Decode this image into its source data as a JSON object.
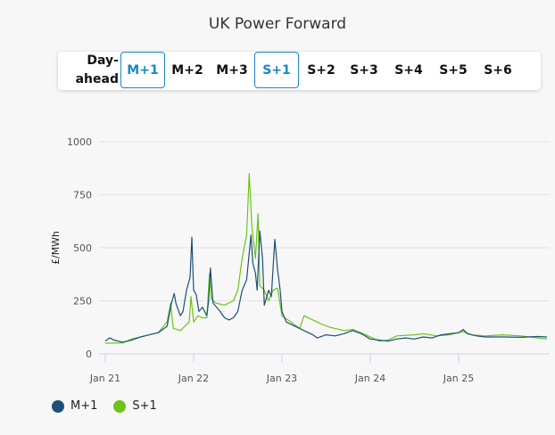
{
  "title": "UK Power Forward",
  "buttons": [
    {
      "label": "Day-",
      "label2": "ahead",
      "active": false
    },
    {
      "label": "M+1",
      "active": true
    },
    {
      "label": "M+2",
      "active": false
    },
    {
      "label": "M+3",
      "active": false
    },
    {
      "label": "S+1",
      "active": true
    },
    {
      "label": "S+2",
      "active": false
    },
    {
      "label": "S+3",
      "active": false
    },
    {
      "label": "S+4",
      "active": false
    },
    {
      "label": "S+5",
      "active": false
    },
    {
      "label": "S+6",
      "active": false
    }
  ],
  "chart_data": {
    "type": "line",
    "title": "UK Power Forward",
    "xlabel": "",
    "ylabel": "£/MWh",
    "ylim": [
      0,
      1000
    ],
    "xlim": [
      2020.93,
      2026.03
    ],
    "yticks": [
      0,
      250,
      500,
      750,
      1000
    ],
    "xticks": [
      {
        "x": 2021,
        "label": "Jan 21"
      },
      {
        "x": 2022,
        "label": "Jan 22"
      },
      {
        "x": 2023,
        "label": "Jan 23"
      },
      {
        "x": 2024,
        "label": "Jan 24"
      },
      {
        "x": 2025,
        "label": "Jan 25"
      }
    ],
    "grid": true,
    "legend_position": "bottom-left",
    "series": [
      {
        "name": "M+1",
        "color": "#1d4f7a",
        "x": [
          2021.0,
          2021.05,
          2021.1,
          2021.2,
          2021.3,
          2021.4,
          2021.5,
          2021.6,
          2021.7,
          2021.75,
          2021.78,
          2021.8,
          2021.85,
          2021.88,
          2021.92,
          2021.96,
          2021.98,
          2022.0,
          2022.03,
          2022.06,
          2022.1,
          2022.15,
          2022.17,
          2022.19,
          2022.22,
          2022.3,
          2022.35,
          2022.4,
          2022.45,
          2022.5,
          2022.55,
          2022.6,
          2022.65,
          2022.67,
          2022.7,
          2022.72,
          2022.75,
          2022.78,
          2022.8,
          2022.85,
          2022.88,
          2022.92,
          2022.95,
          2022.98,
          2023.0,
          2023.05,
          2023.15,
          2023.25,
          2023.35,
          2023.4,
          2023.5,
          2023.6,
          2023.7,
          2023.8,
          2023.9,
          2024.0,
          2024.1,
          2024.2,
          2024.3,
          2024.4,
          2024.5,
          2024.6,
          2024.7,
          2024.8,
          2024.9,
          2025.0,
          2025.05,
          2025.1,
          2025.2,
          2025.3,
          2025.5,
          2025.7,
          2025.9,
          2026.0
        ],
        "y": [
          60,
          75,
          65,
          55,
          65,
          80,
          90,
          100,
          130,
          240,
          285,
          240,
          180,
          200,
          300,
          360,
          550,
          300,
          280,
          200,
          220,
          180,
          250,
          405,
          240,
          200,
          170,
          160,
          170,
          200,
          300,
          350,
          560,
          430,
          380,
          300,
          580,
          450,
          230,
          300,
          270,
          540,
          400,
          300,
          200,
          150,
          130,
          110,
          90,
          75,
          90,
          85,
          95,
          110,
          95,
          70,
          65,
          60,
          70,
          75,
          70,
          80,
          75,
          90,
          95,
          100,
          115,
          95,
          85,
          80,
          80,
          78,
          82,
          80
        ]
      },
      {
        "name": "S+1",
        "color": "#6cc417",
        "x": [
          2021.0,
          2021.2,
          2021.3,
          2021.5,
          2021.6,
          2021.7,
          2021.74,
          2021.77,
          2021.85,
          2021.95,
          2021.97,
          2022.0,
          2022.05,
          2022.1,
          2022.15,
          2022.18,
          2022.2,
          2022.25,
          2022.35,
          2022.45,
          2022.5,
          2022.55,
          2022.6,
          2022.63,
          2022.66,
          2022.7,
          2022.73,
          2022.75,
          2022.8,
          2022.85,
          2022.9,
          2022.95,
          2023.0,
          2023.1,
          2023.2,
          2023.25,
          2023.35,
          2023.45,
          2023.55,
          2023.7,
          2023.8,
          2023.95,
          2024.1,
          2024.2,
          2024.3,
          2024.5,
          2024.6,
          2024.75,
          2024.9,
          2025.05,
          2025.15,
          2025.3,
          2025.5,
          2025.7,
          2025.9,
          2026.0
        ],
        "y": [
          50,
          52,
          70,
          90,
          100,
          150,
          240,
          120,
          110,
          150,
          270,
          150,
          180,
          170,
          170,
          380,
          260,
          240,
          230,
          250,
          300,
          450,
          560,
          850,
          600,
          450,
          660,
          320,
          300,
          250,
          300,
          310,
          180,
          150,
          120,
          180,
          160,
          140,
          125,
          110,
          115,
          90,
          60,
          65,
          85,
          90,
          95,
          85,
          90,
          105,
          90,
          85,
          90,
          85,
          75,
          70
        ]
      }
    ]
  }
}
